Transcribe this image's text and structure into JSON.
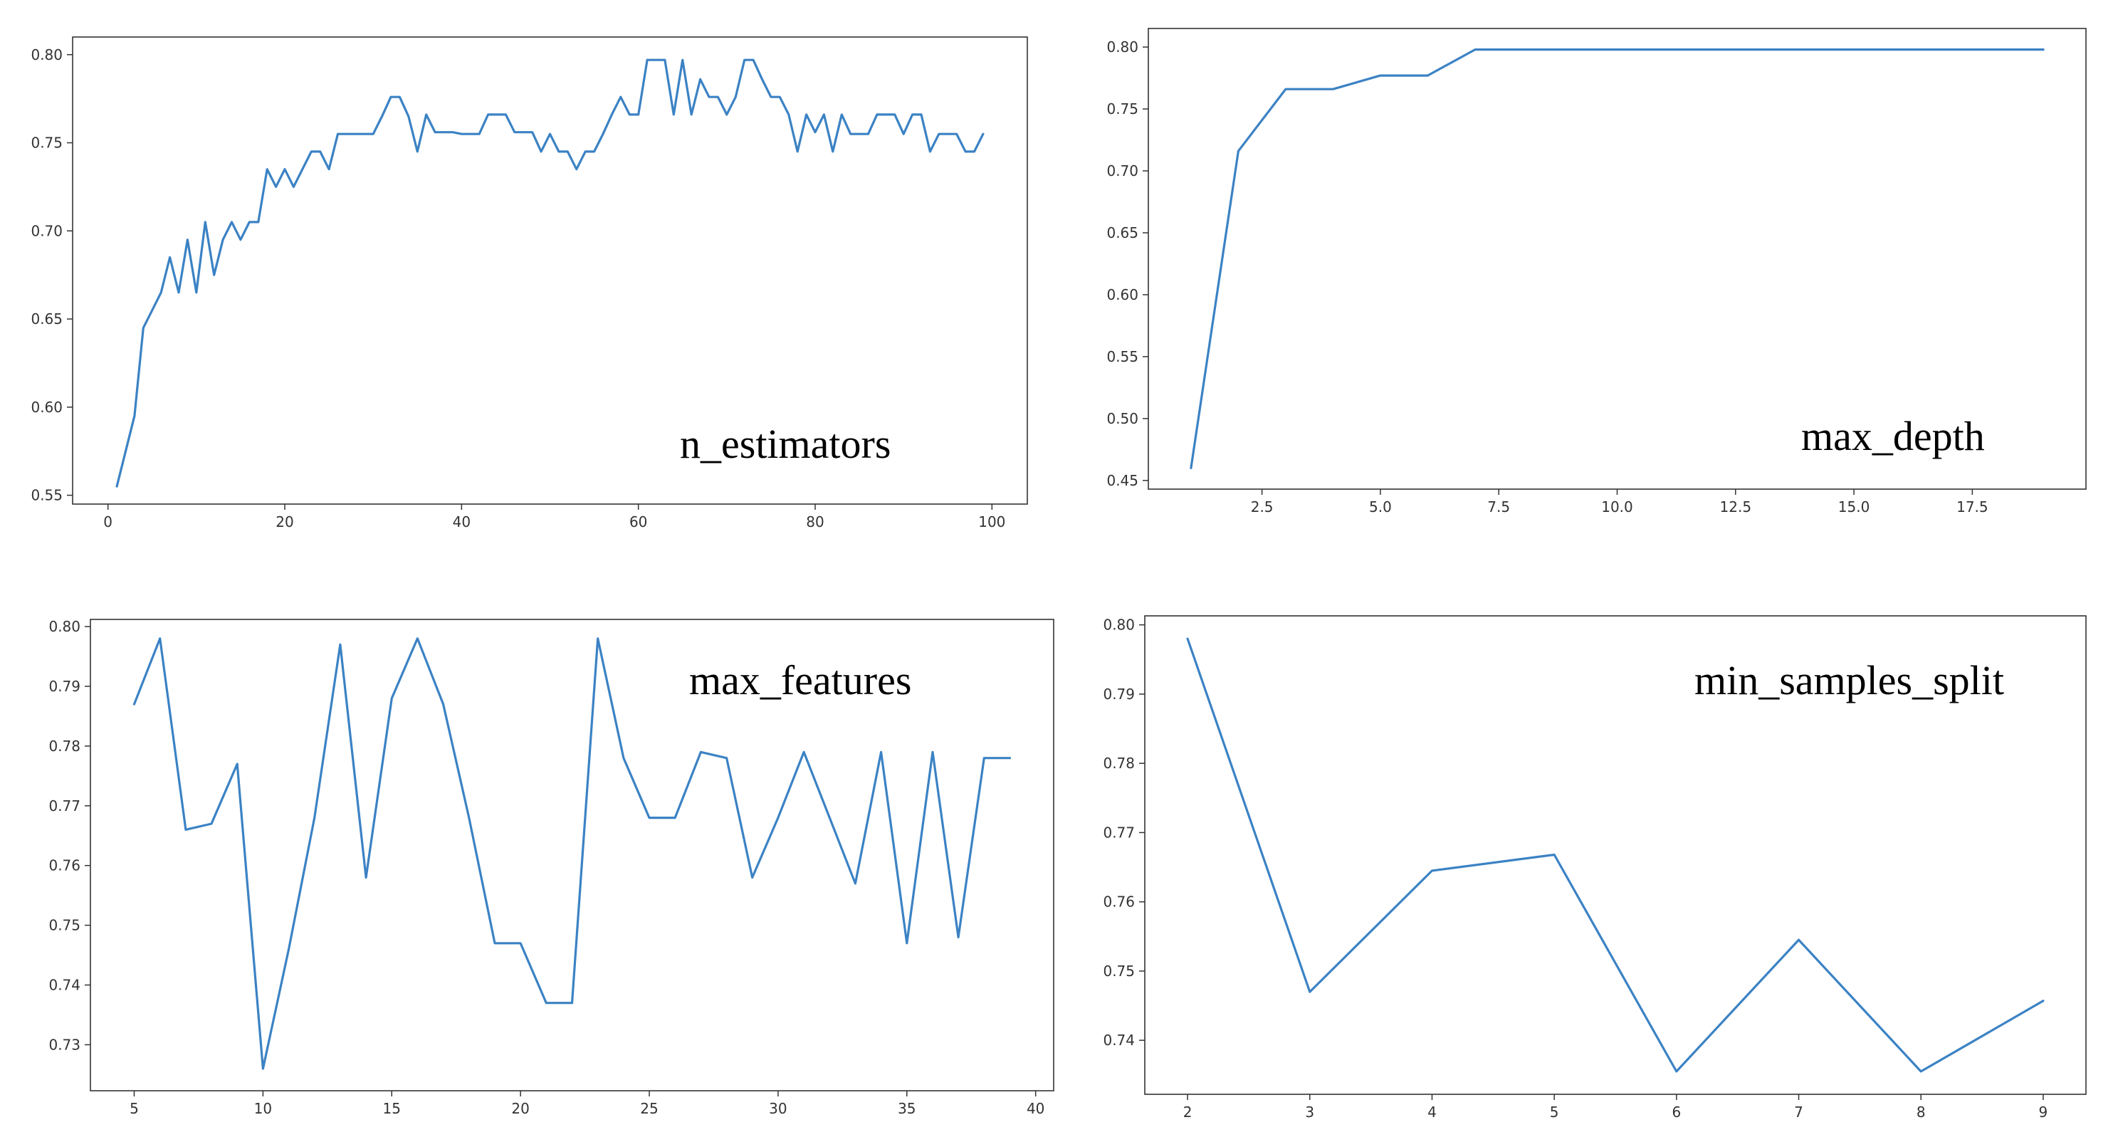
{
  "colors": {
    "line": "#3b82c4",
    "axis": "#333333",
    "background": "#ffffff"
  },
  "chart_data": [
    {
      "type": "line",
      "label": "n_estimators",
      "xlim": [
        -4,
        104
      ],
      "ylim": [
        0.545,
        0.81
      ],
      "xticks": [
        0,
        20,
        40,
        60,
        80,
        100
      ],
      "xtick_labels": [
        "0",
        "20",
        "40",
        "60",
        "80",
        "100"
      ],
      "yticks": [
        0.55,
        0.6,
        0.65,
        0.7,
        0.75,
        0.8
      ],
      "ytick_labels": [
        "0.55",
        "0.60",
        "0.65",
        "0.70",
        "0.75",
        "0.80"
      ],
      "grid": false,
      "x": [
        1,
        2,
        3,
        4,
        5,
        6,
        7,
        8,
        9,
        10,
        11,
        12,
        13,
        14,
        15,
        16,
        17,
        18,
        19,
        20,
        21,
        22,
        23,
        24,
        25,
        26,
        27,
        28,
        29,
        30,
        31,
        32,
        33,
        34,
        35,
        36,
        37,
        38,
        39,
        40,
        41,
        42,
        43,
        44,
        45,
        46,
        47,
        48,
        49,
        50,
        51,
        52,
        53,
        54,
        55,
        56,
        57,
        58,
        59,
        60,
        61,
        62,
        63,
        64,
        65,
        66,
        67,
        68,
        69,
        70,
        71,
        72,
        73,
        74,
        75,
        76,
        77,
        78,
        79,
        80,
        81,
        82,
        83,
        84,
        85,
        86,
        87,
        88,
        89,
        90,
        91,
        92,
        93,
        94,
        95,
        96,
        97,
        98,
        99
      ],
      "y": [
        0.555,
        0.575,
        0.595,
        0.645,
        0.655,
        0.665,
        0.685,
        0.665,
        0.695,
        0.665,
        0.705,
        0.675,
        0.695,
        0.705,
        0.695,
        0.705,
        0.705,
        0.735,
        0.725,
        0.735,
        0.725,
        0.735,
        0.745,
        0.745,
        0.735,
        0.755,
        0.755,
        0.755,
        0.755,
        0.755,
        0.765,
        0.776,
        0.776,
        0.765,
        0.745,
        0.766,
        0.756,
        0.756,
        0.756,
        0.755,
        0.755,
        0.755,
        0.766,
        0.766,
        0.766,
        0.756,
        0.756,
        0.756,
        0.745,
        0.755,
        0.745,
        0.745,
        0.735,
        0.745,
        0.745,
        0.755,
        0.766,
        0.776,
        0.766,
        0.766,
        0.797,
        0.797,
        0.797,
        0.766,
        0.797,
        0.766,
        0.786,
        0.776,
        0.776,
        0.766,
        0.776,
        0.797,
        0.797,
        0.786,
        0.776,
        0.776,
        0.766,
        0.745,
        0.766,
        0.756,
        0.766,
        0.745,
        0.766,
        0.755,
        0.755,
        0.755,
        0.766,
        0.766,
        0.766,
        0.755,
        0.766,
        0.766,
        0.745,
        0.755,
        0.755,
        0.755,
        0.745,
        0.745,
        0.755
      ]
    },
    {
      "type": "line",
      "label": "max_depth",
      "xlim": [
        0.1,
        19.9
      ],
      "ylim": [
        0.443,
        0.815
      ],
      "xticks": [
        2.5,
        5.0,
        7.5,
        10.0,
        12.5,
        15.0,
        17.5
      ],
      "xtick_labels": [
        "2.5",
        "5.0",
        "7.5",
        "10.0",
        "12.5",
        "15.0",
        "17.5"
      ],
      "yticks": [
        0.45,
        0.5,
        0.55,
        0.6,
        0.65,
        0.7,
        0.75,
        0.8
      ],
      "ytick_labels": [
        "0.45",
        "0.50",
        "0.55",
        "0.60",
        "0.65",
        "0.70",
        "0.75",
        "0.80"
      ],
      "grid": false,
      "x": [
        1,
        2,
        3,
        4,
        5,
        6,
        7,
        8,
        9,
        10,
        11,
        12,
        13,
        14,
        15,
        16,
        17,
        18,
        19
      ],
      "y": [
        0.46,
        0.716,
        0.766,
        0.766,
        0.777,
        0.777,
        0.798,
        0.798,
        0.798,
        0.798,
        0.798,
        0.798,
        0.798,
        0.798,
        0.798,
        0.798,
        0.798,
        0.798,
        0.798
      ]
    },
    {
      "type": "line",
      "label": "max_features",
      "xlim": [
        3.3,
        40.7
      ],
      "ylim": [
        0.7223,
        0.8012
      ],
      "xticks": [
        5,
        10,
        15,
        20,
        25,
        30,
        35,
        40
      ],
      "xtick_labels": [
        "5",
        "10",
        "15",
        "20",
        "25",
        "30",
        "35",
        "40"
      ],
      "yticks": [
        0.73,
        0.74,
        0.75,
        0.76,
        0.77,
        0.78,
        0.79,
        0.8
      ],
      "ytick_labels": [
        "0.73",
        "0.74",
        "0.75",
        "0.76",
        "0.77",
        "0.78",
        "0.79",
        "0.80"
      ],
      "grid": false,
      "x": [
        5,
        6,
        7,
        8,
        9,
        10,
        11,
        12,
        13,
        14,
        15,
        16,
        17,
        18,
        19,
        20,
        21,
        22,
        23,
        24,
        25,
        26,
        27,
        28,
        29,
        30,
        31,
        32,
        33,
        34,
        35,
        36,
        37,
        38,
        39
      ],
      "y": [
        0.787,
        0.798,
        0.766,
        0.767,
        0.777,
        0.726,
        0.746,
        0.768,
        0.797,
        0.758,
        0.788,
        0.798,
        0.787,
        0.768,
        0.747,
        0.747,
        0.737,
        0.737,
        0.798,
        0.778,
        0.768,
        0.768,
        0.779,
        0.778,
        0.758,
        0.768,
        0.779,
        0.768,
        0.757,
        0.779,
        0.747,
        0.779,
        0.748,
        0.778,
        0.778
      ]
    },
    {
      "type": "line",
      "label": "min_samples_split",
      "xlim": [
        1.65,
        9.35
      ],
      "ylim": [
        0.7322,
        0.8013
      ],
      "xticks": [
        2,
        3,
        4,
        5,
        6,
        7,
        8,
        9
      ],
      "xtick_labels": [
        "2",
        "3",
        "4",
        "5",
        "6",
        "7",
        "8",
        "9"
      ],
      "yticks": [
        0.74,
        0.75,
        0.76,
        0.77,
        0.78,
        0.79,
        0.8
      ],
      "ytick_labels": [
        "0.74",
        "0.75",
        "0.76",
        "0.77",
        "0.78",
        "0.79",
        "0.80"
      ],
      "grid": false,
      "x": [
        2,
        3,
        4,
        5,
        6,
        7,
        8,
        9
      ],
      "y": [
        0.798,
        0.747,
        0.7645,
        0.7668,
        0.7355,
        0.7545,
        0.7355,
        0.7457
      ]
    }
  ]
}
